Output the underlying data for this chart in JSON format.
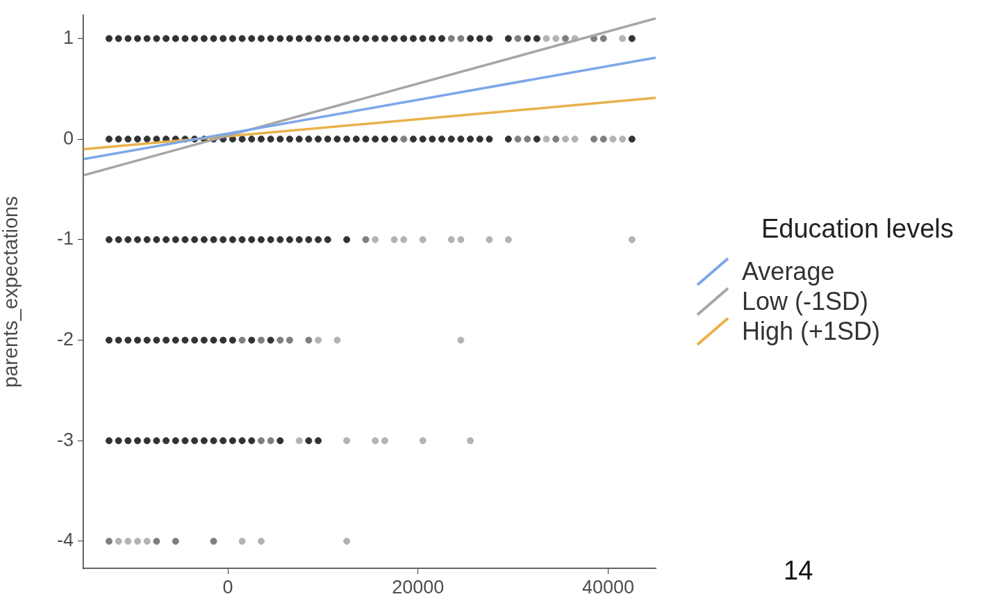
{
  "chart_data": {
    "type": "scatter",
    "ylabel": "parents_expectations",
    "legend_title": "Education levels",
    "legend": "right",
    "marker": "circle",
    "xlim": [
      -15200,
      45000
    ],
    "ylim": [
      -4.27,
      1.23
    ],
    "xticks": [
      0,
      20000,
      40000
    ],
    "yticks": [
      -4,
      -3,
      -2,
      -1,
      0,
      1
    ],
    "annotations": [
      "14"
    ],
    "series": [
      {
        "color": "#333333",
        "x": [
          -12500,
          -11500,
          -10500,
          -9500,
          -8500,
          -7500,
          -6500,
          -5500,
          -4500,
          -3500,
          -2500,
          -1500,
          -500,
          500,
          1500,
          2500,
          3500,
          4500,
          5500,
          6500,
          7500,
          8500,
          9500,
          10500,
          11500,
          12500,
          13500,
          14500,
          15500,
          16500,
          17500,
          18500,
          19500,
          20500,
          21500,
          22500,
          25500,
          26500,
          27500,
          29500,
          31500,
          32500,
          42500,
          -12500,
          -11500,
          -10500,
          -9500,
          -8500,
          -7500,
          -6500,
          -5500,
          -4500,
          -3500,
          -2500,
          -1500,
          -500,
          500,
          1500,
          2500,
          3500,
          4500,
          5500,
          6500,
          7500,
          8500,
          9500,
          10500,
          11500,
          12500,
          13500,
          14500,
          15500,
          16500,
          17500,
          19500,
          20500,
          21500,
          22500,
          23500,
          24500,
          25500,
          26500,
          27500,
          29500,
          32500,
          42500,
          -12500,
          -11500,
          -10500,
          -9500,
          -8500,
          -7500,
          -6500,
          -5500,
          -4500,
          -3500,
          -2500,
          -1500,
          -500,
          500,
          1500,
          2500,
          3500,
          4500,
          5500,
          6500,
          7500,
          8500,
          9500,
          10500,
          12500,
          -12500,
          -11500,
          -10500,
          -9500,
          -8500,
          -7500,
          -6500,
          -5500,
          -4500,
          -3500,
          -2500,
          -1500,
          -500,
          500,
          2500,
          4500,
          -12500,
          -11500,
          -10500,
          -9500,
          -8500,
          -7500,
          -6500,
          -5500,
          -4500,
          -3500,
          -2500,
          -1500,
          -500,
          500,
          1500,
          2500,
          5500,
          8500,
          9500
        ],
        "values": [
          1,
          1,
          1,
          1,
          1,
          1,
          1,
          1,
          1,
          1,
          1,
          1,
          1,
          1,
          1,
          1,
          1,
          1,
          1,
          1,
          1,
          1,
          1,
          1,
          1,
          1,
          1,
          1,
          1,
          1,
          1,
          1,
          1,
          1,
          1,
          1,
          1,
          1,
          1,
          1,
          1,
          1,
          1,
          0,
          0,
          0,
          0,
          0,
          0,
          0,
          0,
          0,
          0,
          0,
          0,
          0,
          0,
          0,
          0,
          0,
          0,
          0,
          0,
          0,
          0,
          0,
          0,
          0,
          0,
          0,
          0,
          0,
          0,
          0,
          0,
          0,
          0,
          0,
          0,
          0,
          0,
          0,
          0,
          0,
          0,
          0,
          -1,
          -1,
          -1,
          -1,
          -1,
          -1,
          -1,
          -1,
          -1,
          -1,
          -1,
          -1,
          -1,
          -1,
          -1,
          -1,
          -1,
          -1,
          -1,
          -1,
          -1,
          -1,
          -1,
          -1,
          -1,
          -2,
          -2,
          -2,
          -2,
          -2,
          -2,
          -2,
          -2,
          -2,
          -2,
          -2,
          -2,
          -2,
          -2,
          -2,
          -2,
          -3,
          -3,
          -3,
          -3,
          -3,
          -3,
          -3,
          -3,
          -3,
          -3,
          -3,
          -3,
          -3,
          -3,
          -3,
          -3,
          -3,
          -3,
          -3
        ]
      },
      {
        "color": "#7f7f7f",
        "x": [
          23500,
          24500,
          30500,
          35500,
          38500,
          39500,
          18500,
          30500,
          31500,
          34500,
          38500,
          39500,
          14500,
          1500,
          3500,
          5500,
          6500,
          8500,
          3500,
          4500,
          -12500,
          -7500,
          -5500,
          -1500
        ],
        "values": [
          1,
          1,
          1,
          1,
          1,
          1,
          0,
          0,
          0,
          0,
          0,
          0,
          -1,
          -2,
          -2,
          -2,
          -2,
          -2,
          -3,
          -3,
          -4,
          -4,
          -4,
          -4
        ]
      },
      {
        "color": "#b3b3b3",
        "x": [
          33500,
          34500,
          36500,
          41500,
          33500,
          35500,
          36500,
          40500,
          41500,
          15500,
          17500,
          18500,
          20500,
          23500,
          24500,
          27500,
          29500,
          42500,
          9500,
          11500,
          24500,
          7500,
          12500,
          15500,
          16500,
          20500,
          25500,
          -11500,
          -10500,
          -9500,
          -8500,
          1500,
          3500,
          12500
        ],
        "values": [
          1,
          1,
          1,
          1,
          0,
          0,
          0,
          0,
          0,
          -1,
          -1,
          -1,
          -1,
          -1,
          -1,
          -1,
          -1,
          -1,
          -2,
          -2,
          -2,
          -3,
          -3,
          -3,
          -3,
          -3,
          -3,
          -4,
          -4,
          -4,
          -4,
          -4,
          -4,
          -4
        ]
      },
      {
        "type": "line",
        "marker": "none",
        "name": "Average",
        "color": "#7ba7e8",
        "x": [
          -15200,
          45000
        ],
        "values": [
          -0.2,
          0.81
        ]
      },
      {
        "type": "line",
        "marker": "none",
        "name": "Low (-1SD)",
        "color": "#a6a6a6",
        "x": [
          -15200,
          45000
        ],
        "values": [
          -0.36,
          1.2
        ]
      },
      {
        "type": "line",
        "marker": "none",
        "name": "High (+1SD)",
        "color": "#e8b14a",
        "x": [
          -15200,
          45000
        ],
        "values": [
          -0.1,
          0.41
        ]
      }
    ]
  }
}
